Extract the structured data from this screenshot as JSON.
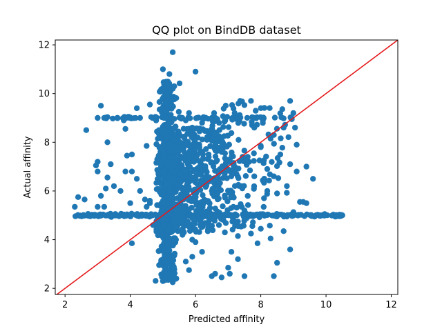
{
  "chart_data": {
    "type": "scatter",
    "title": "QQ plot on BindDB dataset",
    "xlabel": "Predicted affinity",
    "ylabel": "Actual affinity",
    "xlim": [
      1.7,
      12.2
    ],
    "ylim": [
      1.75,
      12.2
    ],
    "xticks": [
      2,
      4,
      6,
      8,
      10,
      12
    ],
    "yticks": [
      2,
      4,
      6,
      8,
      10,
      12
    ],
    "grid": false,
    "marker_color": "#1f77b4",
    "reference_line": {
      "color": "#e41a1c",
      "x": [
        1.7,
        12.2
      ],
      "y": [
        1.7,
        12.2
      ]
    },
    "clusters": [
      {
        "description": "y=5 horizontal band",
        "x_range": [
          2.3,
          10.5
        ],
        "y_center": 5.0,
        "y_spread": 0.05,
        "count": 220
      },
      {
        "description": "vertical band near predicted 5",
        "x_center": 5.15,
        "x_spread": 0.22,
        "y_range": [
          2.3,
          10.5
        ],
        "count": 500
      },
      {
        "description": "dense core",
        "x_range": [
          4.8,
          7.5
        ],
        "y_range": [
          4.3,
          8.6
        ],
        "count": 650
      },
      {
        "description": "y=9 row",
        "x_range": [
          3.0,
          9.0
        ],
        "y_center": 9.0,
        "y_spread": 0.04,
        "count": 60
      },
      {
        "description": "right spread",
        "x_range": [
          6.5,
          9.3
        ],
        "y_range": [
          4.4,
          9.7
        ],
        "count": 150
      }
    ],
    "points": [
      [
        5.3,
        11.7
      ],
      [
        5.0,
        11.0
      ],
      [
        6.0,
        10.9
      ],
      [
        5.2,
        10.8
      ],
      [
        5.1,
        10.4
      ],
      [
        5.2,
        10.2
      ],
      [
        3.1,
        9.5
      ],
      [
        4.6,
        9.55
      ],
      [
        7.7,
        9.7
      ],
      [
        8.9,
        9.7
      ],
      [
        9.0,
        9.2
      ],
      [
        7.2,
        9.2
      ],
      [
        2.65,
        8.5
      ],
      [
        3.85,
        8.55
      ],
      [
        4.2,
        9.4
      ],
      [
        3.3,
        8.0
      ],
      [
        4.5,
        7.85
      ],
      [
        9.1,
        7.9
      ],
      [
        3.0,
        7.2
      ],
      [
        2.95,
        7.05
      ],
      [
        3.0,
        6.8
      ],
      [
        3.4,
        7.1
      ],
      [
        3.9,
        7.45
      ],
      [
        4.05,
        7.5
      ],
      [
        3.3,
        6.55
      ],
      [
        3.85,
        6.8
      ],
      [
        4.05,
        6.8
      ],
      [
        4.2,
        6.5
      ],
      [
        9.4,
        7.0
      ],
      [
        9.6,
        6.5
      ],
      [
        2.6,
        5.65
      ],
      [
        2.4,
        5.75
      ],
      [
        3.1,
        5.8
      ],
      [
        3.25,
        6.1
      ],
      [
        3.5,
        6.2
      ],
      [
        3.7,
        6.0
      ],
      [
        4.3,
        6.0
      ],
      [
        4.45,
        5.65
      ],
      [
        4.6,
        5.5
      ],
      [
        2.3,
        5.35
      ],
      [
        3.2,
        5.35
      ],
      [
        3.0,
        5.35
      ],
      [
        4.0,
        5.5
      ],
      [
        4.5,
        5.35
      ],
      [
        4.6,
        5.6
      ],
      [
        9.2,
        5.55
      ],
      [
        9.3,
        5.55
      ],
      [
        9.4,
        5.5
      ],
      [
        8.2,
        6.0
      ],
      [
        8.5,
        5.9
      ],
      [
        8.8,
        6.2
      ],
      [
        7.5,
        5.2
      ],
      [
        8.1,
        5.7
      ],
      [
        8.4,
        6.6
      ],
      [
        4.05,
        3.85
      ],
      [
        4.7,
        4.6
      ],
      [
        5.15,
        3.75
      ],
      [
        5.2,
        3.55
      ],
      [
        5.35,
        3.35
      ],
      [
        5.7,
        3.1
      ],
      [
        5.9,
        3.3
      ],
      [
        6.0,
        3.9
      ],
      [
        6.2,
        3.5
      ],
      [
        5.8,
        2.75
      ],
      [
        6.5,
        2.5
      ],
      [
        6.8,
        2.45
      ],
      [
        7.0,
        2.85
      ],
      [
        7.05,
        2.6
      ],
      [
        7.1,
        3.5
      ],
      [
        7.5,
        2.5
      ],
      [
        6.6,
        2.6
      ],
      [
        7.3,
        3.2
      ],
      [
        7.9,
        3.85
      ],
      [
        8.3,
        4.05
      ],
      [
        8.4,
        2.5
      ],
      [
        8.5,
        3.05
      ],
      [
        8.7,
        4.35
      ],
      [
        8.9,
        3.6
      ],
      [
        10.4,
        5.0
      ],
      [
        10.5,
        5.0
      ],
      [
        9.8,
        5.0
      ],
      [
        9.7,
        5.0
      ],
      [
        8.8,
        4.95
      ],
      [
        8.0,
        4.45
      ],
      [
        7.7,
        4.25
      ],
      [
        7.3,
        4.15
      ],
      [
        6.9,
        4.3
      ],
      [
        6.5,
        4.4
      ],
      [
        6.15,
        4.6
      ],
      [
        5.9,
        4.0
      ],
      [
        5.6,
        4.2
      ],
      [
        5.4,
        4.0
      ],
      [
        5.1,
        2.6
      ],
      [
        5.0,
        2.3
      ],
      [
        5.1,
        2.35
      ],
      [
        5.3,
        2.25
      ],
      [
        6.3,
        6.95
      ],
      [
        6.8,
        7.6
      ],
      [
        7.2,
        7.0
      ],
      [
        7.6,
        7.4
      ],
      [
        8.0,
        7.8
      ],
      [
        8.4,
        8.3
      ],
      [
        8.7,
        8.6
      ],
      [
        8.95,
        8.95
      ],
      [
        9.05,
        8.6
      ],
      [
        6.6,
        8.35
      ],
      [
        6.2,
        8.8
      ],
      [
        6.9,
        9.0
      ],
      [
        7.3,
        8.9
      ],
      [
        7.8,
        8.6
      ],
      [
        8.3,
        8.15
      ],
      [
        8.6,
        7.5
      ],
      [
        8.9,
        7.1
      ],
      [
        9.1,
        6.8
      ],
      [
        7.4,
        6.2
      ],
      [
        7.8,
        6.6
      ],
      [
        8.2,
        6.9
      ],
      [
        6.5,
        6.0
      ],
      [
        6.1,
        6.2
      ],
      [
        6.4,
        7.5
      ],
      [
        5.7,
        8.9
      ],
      [
        5.8,
        9.2
      ],
      [
        6.05,
        9.0
      ],
      [
        5.9,
        8.6
      ],
      [
        6.35,
        8.1
      ],
      [
        6.1,
        7.8
      ],
      [
        4.0,
        9.0
      ],
      [
        4.3,
        9.0
      ],
      [
        3.8,
        8.9
      ],
      [
        3.6,
        9.0
      ],
      [
        3.2,
        9.0
      ],
      [
        3.0,
        9.0
      ]
    ]
  }
}
